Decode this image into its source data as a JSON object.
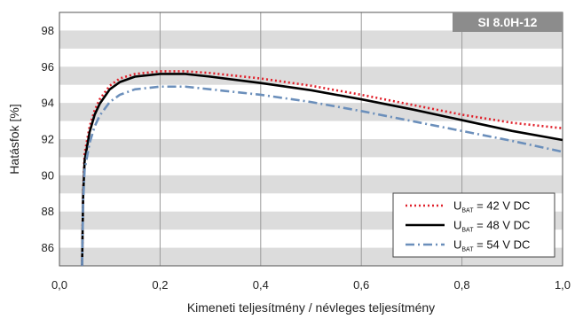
{
  "chart_data": {
    "type": "line",
    "badge": "SI 8.0H-12",
    "xlabel": "Kimeneti teljesítmény / névleges teljesítmény",
    "ylabel": "Hatásfok [%]",
    "xlim": [
      0,
      1
    ],
    "ylim": [
      85,
      99
    ],
    "x_ticks": [
      "0,0",
      "0,2",
      "0,4",
      "0,6",
      "0,8",
      "1,0"
    ],
    "y_ticks": [
      "86",
      "88",
      "90",
      "92",
      "94",
      "96",
      "98"
    ],
    "grid": "vertical lines, alternating horizontal gray bands",
    "legend_position": "bottom-right",
    "series": [
      {
        "legend_main": "U",
        "legend_sub": "BAT",
        "legend_rest": " = 42 V DC",
        "color": "#e0202a",
        "style": "dotted",
        "points": [
          [
            0.045,
            85.0
          ],
          [
            0.047,
            89.0
          ],
          [
            0.05,
            91.2
          ],
          [
            0.06,
            92.7
          ],
          [
            0.07,
            93.6
          ],
          [
            0.08,
            94.2
          ],
          [
            0.1,
            94.95
          ],
          [
            0.12,
            95.35
          ],
          [
            0.15,
            95.6
          ],
          [
            0.2,
            95.75
          ],
          [
            0.25,
            95.75
          ],
          [
            0.3,
            95.65
          ],
          [
            0.4,
            95.35
          ],
          [
            0.5,
            94.95
          ],
          [
            0.6,
            94.45
          ],
          [
            0.7,
            93.9
          ],
          [
            0.8,
            93.35
          ],
          [
            0.9,
            92.9
          ],
          [
            1.0,
            92.6
          ]
        ]
      },
      {
        "legend_main": "U",
        "legend_sub": "BAT",
        "legend_rest": " = 48 V DC",
        "color": "#000000",
        "style": "solid",
        "points": [
          [
            0.045,
            85.0
          ],
          [
            0.047,
            88.8
          ],
          [
            0.05,
            90.8
          ],
          [
            0.06,
            92.4
          ],
          [
            0.07,
            93.35
          ],
          [
            0.08,
            93.95
          ],
          [
            0.1,
            94.75
          ],
          [
            0.12,
            95.15
          ],
          [
            0.15,
            95.45
          ],
          [
            0.2,
            95.6
          ],
          [
            0.25,
            95.6
          ],
          [
            0.3,
            95.45
          ],
          [
            0.4,
            95.1
          ],
          [
            0.5,
            94.7
          ],
          [
            0.6,
            94.2
          ],
          [
            0.7,
            93.65
          ],
          [
            0.8,
            93.05
          ],
          [
            0.9,
            92.45
          ],
          [
            1.0,
            91.95
          ]
        ]
      },
      {
        "legend_main": "U",
        "legend_sub": "BAT",
        "legend_rest": " = 54 V DC",
        "color": "#6b8fbb",
        "style": "dashdot",
        "points": [
          [
            0.045,
            85.0
          ],
          [
            0.047,
            88.5
          ],
          [
            0.05,
            90.3
          ],
          [
            0.06,
            91.8
          ],
          [
            0.07,
            92.7
          ],
          [
            0.08,
            93.3
          ],
          [
            0.1,
            94.05
          ],
          [
            0.12,
            94.45
          ],
          [
            0.15,
            94.75
          ],
          [
            0.2,
            94.9
          ],
          [
            0.25,
            94.9
          ],
          [
            0.3,
            94.75
          ],
          [
            0.4,
            94.45
          ],
          [
            0.5,
            94.05
          ],
          [
            0.6,
            93.55
          ],
          [
            0.7,
            93.0
          ],
          [
            0.8,
            92.45
          ],
          [
            0.9,
            91.9
          ],
          [
            1.0,
            91.3
          ]
        ]
      }
    ]
  }
}
